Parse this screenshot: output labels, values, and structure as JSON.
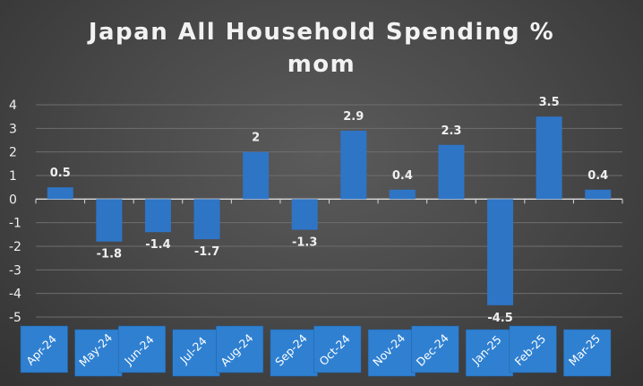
{
  "chart_data": {
    "type": "bar",
    "title_line1": "Japan All Household Spending %",
    "title_line2": "mom",
    "categories": [
      "Apr-24",
      "May-24",
      "Jun-24",
      "Jul-24",
      "Aug-24",
      "Sep-24",
      "Oct-24",
      "Nov-24",
      "Dec-24",
      "Jan-25",
      "Feb-25",
      "Mar-25"
    ],
    "values": [
      0.5,
      -1.8,
      -1.4,
      -1.7,
      2,
      -1.3,
      2.9,
      0.4,
      2.3,
      -4.5,
      3.5,
      0.4
    ],
    "data_labels": [
      "0.5",
      "-1.8",
      "-1.4",
      "-1.7",
      "2",
      "-1.3",
      "2.9",
      "0.4",
      "2.3",
      "-4.5",
      "3.5",
      "0.4"
    ],
    "yticks": [
      4,
      3,
      2,
      1,
      0,
      -1,
      -2,
      -3,
      -4,
      -5
    ],
    "ylim": [
      -5,
      4
    ],
    "grid": true,
    "bar_color": "#2e75c6",
    "category_box_color": "#2f80d1",
    "background_color": "#4a4a4a"
  }
}
